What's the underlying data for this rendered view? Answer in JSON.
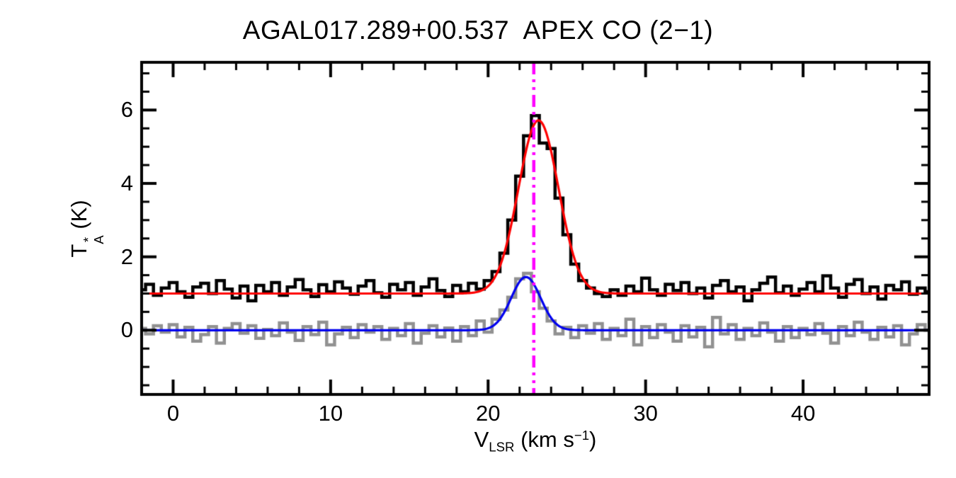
{
  "title": "AGAL017.289+00.537  APEX CO (2−1)",
  "labels": {
    "x_tick_labels": [
      "0",
      "10",
      "20",
      "30",
      "40"
    ],
    "y_tick_labels": [
      "0",
      "2",
      "4",
      "6"
    ],
    "xlabel_parts": {
      "base": "V",
      "sub": "LSR",
      "mid": " (km s",
      "sup": "−1",
      "end": ")"
    },
    "ylabel_parts": {
      "base": "T",
      "sup": "*",
      "sub": "A",
      "rest": " (K)"
    }
  },
  "chart_data": {
    "type": "line",
    "title": "AGAL017.289+00.537  APEX CO (2−1)",
    "xlabel": "V_LSR (km s^-1)",
    "ylabel": "T_A^* (K)",
    "xlim": [
      -2.0,
      48.0
    ],
    "ylim": [
      -1.75,
      7.3
    ],
    "x_ticks": [
      0,
      10,
      20,
      30,
      40
    ],
    "y_ticks": [
      0,
      2,
      4,
      6
    ],
    "x_minor_step": 2,
    "y_minor_step": 0.5,
    "grid": false,
    "legend": "none",
    "x_start": -2.0,
    "x_step": 0.5,
    "series": [
      {
        "name": "co21-spectrum",
        "style": "histogram",
        "color": "#000000",
        "linewidth": 4.5,
        "values": [
          1.1,
          1.25,
          0.95,
          1.15,
          1.3,
          1.05,
          0.9,
          1.18,
          1.28,
          1.0,
          1.35,
          1.12,
          0.88,
          1.2,
          0.8,
          1.22,
          1.05,
          1.3,
          0.95,
          1.18,
          1.38,
          1.1,
          0.92,
          1.24,
          1.05,
          1.32,
          1.15,
          0.98,
          1.2,
          1.35,
          1.02,
          0.9,
          1.25,
          1.1,
          1.3,
          0.95,
          1.18,
          1.4,
          1.08,
          0.92,
          1.22,
          1.05,
          1.28,
          1.12,
          1.35,
          1.6,
          2.1,
          3.0,
          4.2,
          5.3,
          5.85,
          5.1,
          4.95,
          3.6,
          2.6,
          1.8,
          1.35,
          1.15,
          1.0,
          0.92,
          1.1,
          0.95,
          1.2,
          1.05,
          1.42,
          1.1,
          0.95,
          1.25,
          1.08,
          1.3,
          1.0,
          1.15,
          0.88,
          1.22,
          1.35,
          1.05,
          1.18,
          0.8,
          1.1,
          1.28,
          1.45,
          1.02,
          1.2,
          0.95,
          1.12,
          1.3,
          1.05,
          1.48,
          1.15,
          0.9,
          1.25,
          1.38,
          1.0,
          1.18,
          0.85,
          1.22,
          1.1,
          1.32,
          0.98,
          1.15,
          1.05
        ]
      },
      {
        "name": "reference-spectrum",
        "style": "histogram",
        "color": "#919191",
        "linewidth": 4.5,
        "values": [
          0.05,
          -0.1,
          0.12,
          -0.05,
          0.15,
          -0.18,
          0.08,
          -0.3,
          -0.12,
          0.1,
          -0.35,
          0.05,
          0.18,
          -0.08,
          0.12,
          -0.22,
          0.02,
          -0.15,
          0.2,
          -0.05,
          -0.28,
          0.1,
          -0.12,
          0.22,
          -0.4,
          -0.1,
          0.08,
          -0.2,
          0.15,
          -0.05,
          0.1,
          -0.25,
          0.05,
          -0.15,
          0.18,
          -0.35,
          -0.08,
          0.12,
          -0.18,
          0.06,
          -0.3,
          0.1,
          -0.15,
          0.25,
          -0.05,
          0.3,
          0.55,
          0.9,
          1.4,
          1.55,
          1.05,
          0.6,
          0.25,
          -0.1,
          0.08,
          -0.2,
          0.12,
          -0.08,
          0.18,
          -0.25,
          0.05,
          -0.15,
          0.3,
          -0.4,
          0.1,
          -0.2,
          0.15,
          -0.05,
          -0.3,
          0.12,
          -0.18,
          0.08,
          -0.45,
          0.35,
          -0.1,
          0.15,
          -0.25,
          0.05,
          -0.15,
          0.2,
          -0.05,
          -0.3,
          0.1,
          -0.2,
          0.05,
          -0.12,
          0.18,
          -0.08,
          -0.35,
          0.1,
          -0.15,
          0.22,
          -0.05,
          -0.25,
          0.08,
          -0.18,
          0.12,
          -0.4,
          -0.1,
          0.15,
          0.0
        ]
      }
    ],
    "fits": [
      {
        "name": "gaussian-fit-main",
        "color": "#ff0000",
        "linewidth": 3.2,
        "baseline": 1.0,
        "amplitude": 4.72,
        "center": 23.2,
        "fwhm": 3.0
      },
      {
        "name": "gaussian-fit-reference",
        "color": "#0000ee",
        "linewidth": 3.2,
        "baseline": 0.0,
        "amplitude": 1.45,
        "center": 22.4,
        "fwhm": 2.2
      }
    ],
    "vline": {
      "x": 22.9,
      "color": "#ff00ff",
      "style": "dash-dot",
      "linewidth": 4.5
    }
  }
}
